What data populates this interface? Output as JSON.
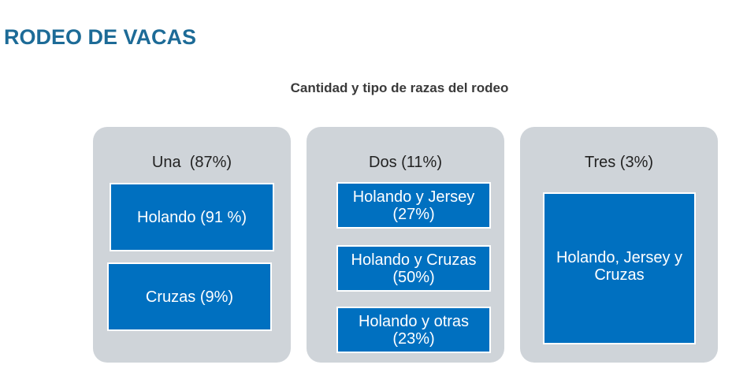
{
  "header": {
    "title": "RODEO DE VACAS",
    "subtitle": "Cantidad y tipo de razas del rodeo"
  },
  "groups": [
    {
      "label": "Una  (87%)",
      "items": [
        "Holando (91 %)",
        "Cruzas (9%)"
      ]
    },
    {
      "label": "Dos (11%)",
      "items": [
        "Holando y Jersey (27%)",
        "Holando y Cruzas (50%)",
        "Holando y otras (23%)"
      ]
    },
    {
      "label": "Tres (3%)",
      "items": [
        "Holando, Jersey y Cruzas"
      ]
    }
  ]
}
